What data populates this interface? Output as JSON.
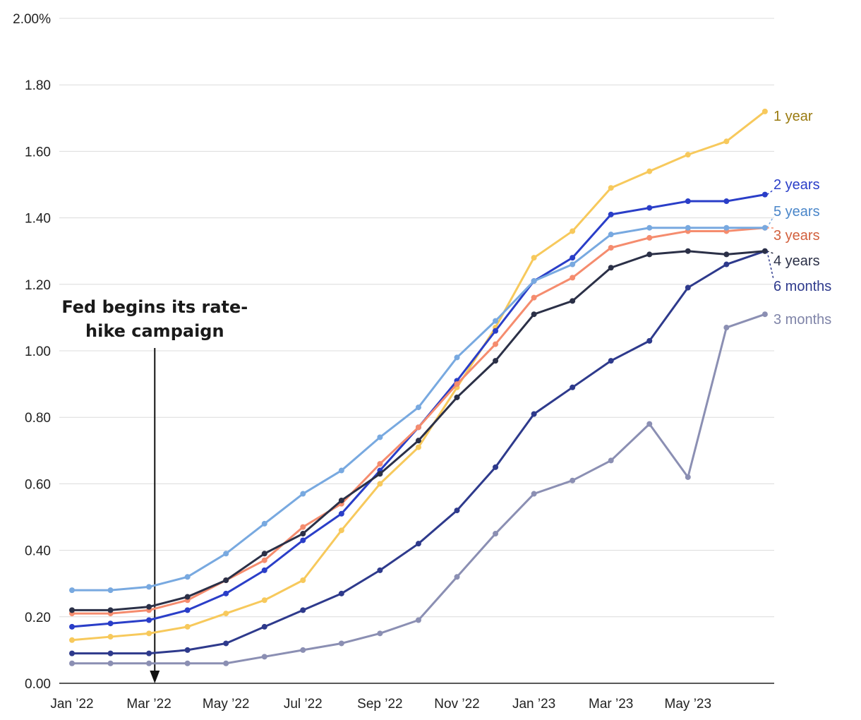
{
  "chart_data": {
    "type": "line",
    "title": "",
    "xlabel": "",
    "ylabel": "",
    "ylim": [
      0,
      2.0
    ],
    "y_ticks": [
      {
        "value": 0.0,
        "label": "0.00"
      },
      {
        "value": 0.2,
        "label": "0.20"
      },
      {
        "value": 0.4,
        "label": "0.40"
      },
      {
        "value": 0.6,
        "label": "0.60"
      },
      {
        "value": 0.8,
        "label": "0.80"
      },
      {
        "value": 1.0,
        "label": "1.00"
      },
      {
        "value": 1.2,
        "label": "1.20"
      },
      {
        "value": 1.4,
        "label": "1.40"
      },
      {
        "value": 1.6,
        "label": "1.60"
      },
      {
        "value": 1.8,
        "label": "1.80"
      },
      {
        "value": 2.0,
        "label": "2.00%"
      }
    ],
    "x": [
      "Jan 2022",
      "Feb 2022",
      "Mar 2022",
      "Apr 2022",
      "May 2022",
      "Jun 2022",
      "Jul 2022",
      "Aug 2022",
      "Sep 2022",
      "Oct 2022",
      "Nov 2022",
      "Dec 2022",
      "Jan 2023",
      "Feb 2023",
      "Mar 2023",
      "Apr 2023",
      "May 2023",
      "Jun 2023",
      "Jul 2023"
    ],
    "x_ticks": [
      {
        "index": 0,
        "label": "Jan ’22"
      },
      {
        "index": 2,
        "label": "Mar ’22"
      },
      {
        "index": 4,
        "label": "May ’22"
      },
      {
        "index": 6,
        "label": "Jul ’22"
      },
      {
        "index": 8,
        "label": "Sep ’22"
      },
      {
        "index": 10,
        "label": "Nov ’22"
      },
      {
        "index": 12,
        "label": "Jan ’23"
      },
      {
        "index": 14,
        "label": "Mar ’23"
      },
      {
        "index": 16,
        "label": "May ’23"
      }
    ],
    "series": [
      {
        "name": "3 months",
        "label": "3 months",
        "color": "#8b8fb3",
        "label_color": "#7f84a8",
        "values": [
          0.06,
          0.06,
          0.06,
          0.06,
          0.06,
          0.08,
          0.1,
          0.12,
          0.15,
          0.19,
          0.32,
          0.45,
          0.57,
          0.61,
          0.67,
          0.78,
          0.62,
          1.07,
          1.11
        ]
      },
      {
        "name": "6 months",
        "label": "6 months",
        "color": "#2e3a8c",
        "label_color": "#2e3a8c",
        "values": [
          0.09,
          0.09,
          0.09,
          0.1,
          0.12,
          0.17,
          0.22,
          0.27,
          0.34,
          0.42,
          0.52,
          0.65,
          0.81,
          0.89,
          0.97,
          1.03,
          1.19,
          1.26,
          1.3
        ]
      },
      {
        "name": "1 year",
        "label": "1 year",
        "color": "#f7c95c",
        "label_color": "#9a7b10",
        "values": [
          0.13,
          0.14,
          0.15,
          0.17,
          0.21,
          0.25,
          0.31,
          0.46,
          0.6,
          0.71,
          0.89,
          1.07,
          1.28,
          1.36,
          1.49,
          1.54,
          1.59,
          1.63,
          1.72
        ]
      },
      {
        "name": "2 years",
        "label": "2 years",
        "color": "#2a3ec8",
        "label_color": "#2a3ec8",
        "values": [
          0.17,
          0.18,
          0.19,
          0.22,
          0.27,
          0.34,
          0.43,
          0.51,
          0.64,
          0.77,
          0.91,
          1.06,
          1.21,
          1.28,
          1.41,
          1.43,
          1.45,
          1.45,
          1.47
        ]
      },
      {
        "name": "3 years",
        "label": "3 years",
        "color": "#f58c6e",
        "label_color": "#d2603d",
        "values": [
          0.21,
          0.21,
          0.22,
          0.25,
          0.31,
          0.37,
          0.47,
          0.54,
          0.66,
          0.77,
          0.9,
          1.02,
          1.16,
          1.22,
          1.31,
          1.34,
          1.36,
          1.36,
          1.37
        ]
      },
      {
        "name": "5 years",
        "label": "5 years",
        "color": "#78a9e0",
        "label_color": "#4a86c9",
        "values": [
          0.28,
          0.28,
          0.29,
          0.32,
          0.39,
          0.48,
          0.57,
          0.64,
          0.74,
          0.83,
          0.98,
          1.09,
          1.21,
          1.26,
          1.35,
          1.37,
          1.37,
          1.37,
          1.37
        ]
      },
      {
        "name": "4 years",
        "label": "4 years",
        "color": "#2b3047",
        "label_color": "#2b3047",
        "values": [
          0.22,
          0.22,
          0.23,
          0.26,
          0.31,
          0.39,
          0.45,
          0.55,
          0.63,
          0.73,
          0.86,
          0.97,
          1.11,
          1.15,
          1.25,
          1.29,
          1.3,
          1.29,
          1.3
        ]
      }
    ],
    "annotation": {
      "line1": "Fed begins its rate-",
      "line2": "hike campaign",
      "x_index": 2.15
    }
  }
}
